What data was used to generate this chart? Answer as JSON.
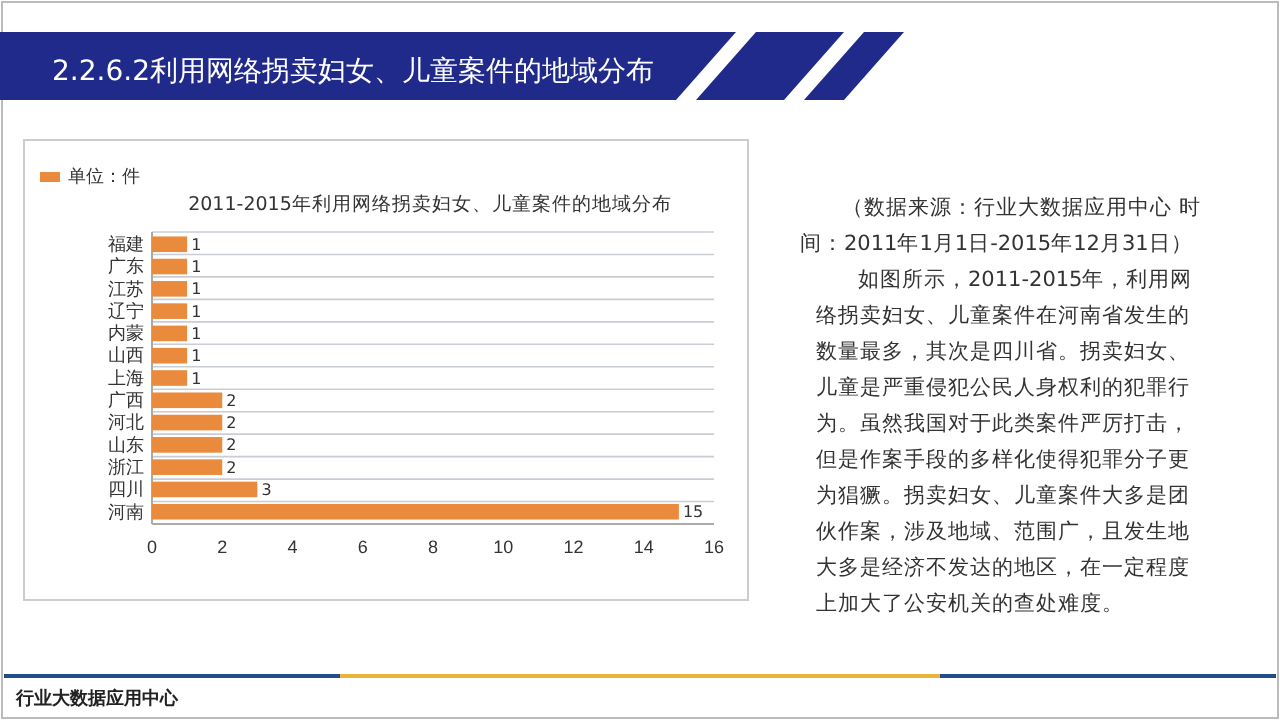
{
  "chart_data": {
    "type": "bar",
    "orientation": "horizontal",
    "title": "2.2.6.2利用网络拐卖妇女、儿童案件的地域分布",
    "subtitle": "2011-2015年利用网络拐卖妇女、儿童案件的地域分布",
    "categories": [
      "福建",
      "广东",
      "江苏",
      "辽宁",
      "内蒙",
      "山西",
      "上海",
      "广西",
      "河北",
      "山东",
      "浙江",
      "四川",
      "河南"
    ],
    "series": [
      {
        "name": "单位：件",
        "color": "#e98a3c",
        "values": [
          1,
          1,
          1,
          1,
          1,
          1,
          1,
          2,
          2,
          2,
          2,
          3,
          15
        ]
      }
    ],
    "xlim": [
      0,
      16
    ],
    "xticks": [
      0,
      2,
      4,
      6,
      8,
      10,
      12,
      14,
      16
    ],
    "data_labels": true,
    "legend": "top left",
    "annotations": [
      "（数据来源：行业大数据应用中心 时间：2011年1月1日-2015年12月31日）",
      "如图所示，2011-2015年，利用网络拐卖妇女、儿童案件在河南省发生的数量最多，其次是四川省。拐卖妇女、儿童是严重侵犯公民人身权利的犯罪行为。虽然我国对于此类案件严厉打击，但是作案手段的多样化使得犯罪分子更为猖獗。拐卖妇女、儿童案件大多是团伙作案，涉及地域、范围广，且发生地大多是经济不发达的地区，在一定程度上加大了公安机关的查处难度。",
      "行业大数据应用中心"
    ]
  }
}
